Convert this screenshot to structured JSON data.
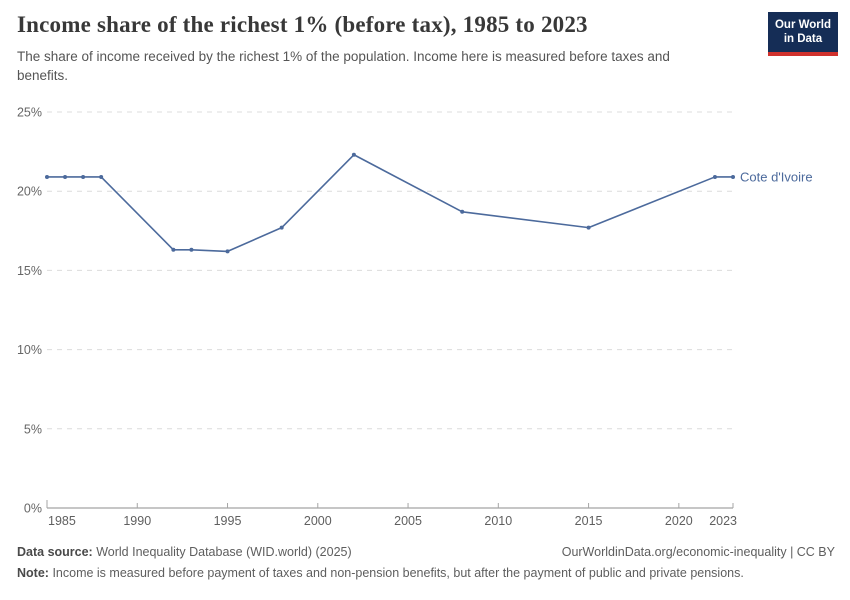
{
  "header": {
    "title": "Income share of the richest 1% (before tax), 1985 to 2023",
    "subtitle": "The share of income received by the richest 1% of the population. Income here is measured before taxes and benefits.",
    "logo": {
      "line1": "Our World",
      "line2": "in Data"
    }
  },
  "chart_data": {
    "type": "line",
    "title": "Income share of the richest 1% (before tax), 1985 to 2023",
    "xlabel": "",
    "ylabel": "",
    "xlim": [
      1985,
      2023
    ],
    "ylim": [
      0,
      25
    ],
    "x_ticks": [
      1985,
      1990,
      1995,
      2000,
      2005,
      2010,
      2015,
      2020,
      2023
    ],
    "y_ticks": [
      0,
      5,
      10,
      15,
      20,
      25
    ],
    "y_tick_suffix": "%",
    "grid": "horizontal-dashed",
    "legend_position": "line-end-label",
    "series": [
      {
        "name": "Cote d'Ivoire",
        "color": "#4c6a9c",
        "x": [
          1985,
          1986,
          1987,
          1988,
          1992,
          1993,
          1995,
          1998,
          2002,
          2008,
          2015,
          2022,
          2023
        ],
        "values": [
          20.9,
          20.9,
          20.9,
          20.9,
          16.3,
          16.3,
          16.2,
          17.7,
          22.3,
          18.7,
          17.7,
          20.9,
          20.9
        ]
      }
    ]
  },
  "footer": {
    "datasource_label": "Data source:",
    "datasource_text": "World Inequality Database (WID.world) (2025)",
    "link_text": "OurWorldinData.org/economic-inequality | CC BY",
    "note_label": "Note:",
    "note_text": "Income is measured before payment of taxes and non-pension benefits, but after the payment of public and private pensions."
  },
  "colors": {
    "accent": "#4c6a9c",
    "logo_bg": "#152d56",
    "logo_stripe": "#d0312d",
    "grid": "#dcdcdc",
    "axis": "#8c8c8c",
    "y_tick_label": "#666666",
    "x_tick_label": "#5f5f5f"
  }
}
